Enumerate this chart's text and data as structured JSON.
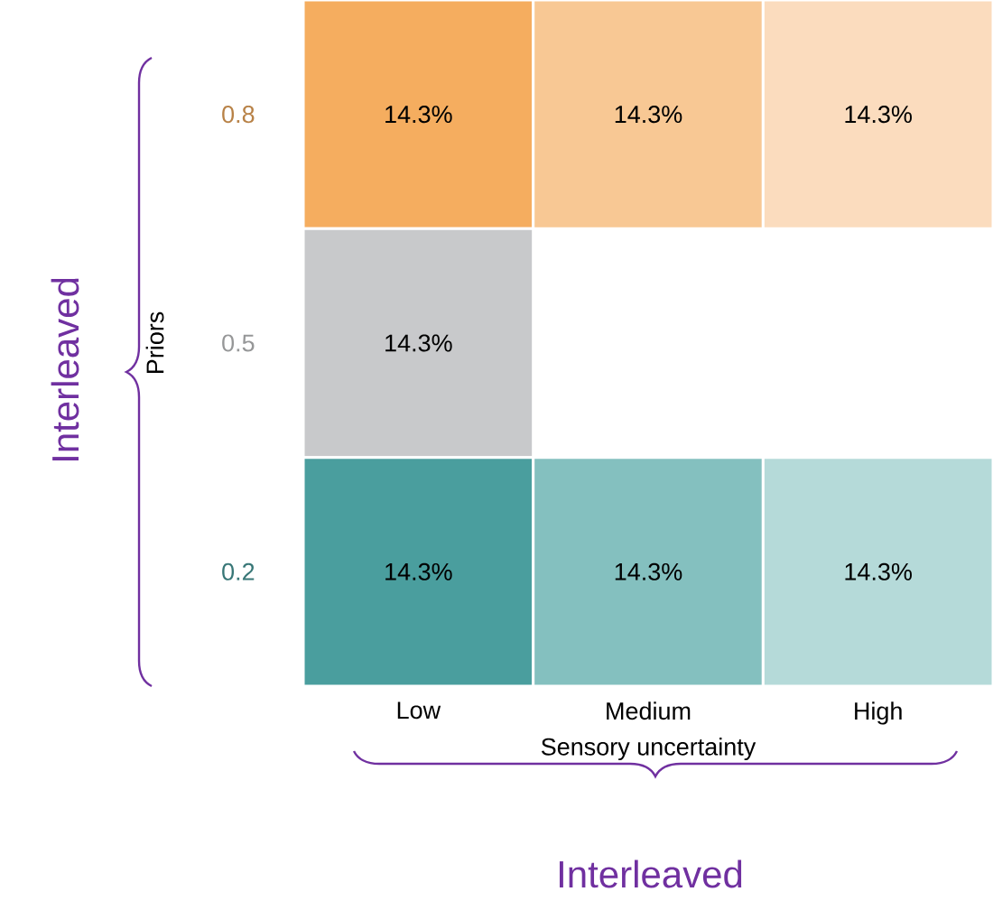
{
  "chart_data": {
    "type": "heatmap",
    "categories": [
      "Low",
      "Medium",
      "High"
    ],
    "y_categories": [
      "0.8",
      "0.5",
      "0.2"
    ],
    "cells": [
      [
        14.3,
        14.3,
        14.3
      ],
      [
        14.3,
        null,
        null
      ],
      [
        14.3,
        14.3,
        14.3
      ]
    ],
    "cell_labels": [
      [
        "14.3%",
        "14.3%",
        "14.3%"
      ],
      [
        "14.3%",
        null,
        null
      ],
      [
        "14.3%",
        "14.3%",
        "14.3%"
      ]
    ],
    "colors": [
      [
        "#f5ad5f",
        "#f8c894",
        "#fbdcbe"
      ],
      [
        "#c8c9cb",
        null,
        null
      ],
      [
        "#4a9e9e",
        "#84c0bf",
        "#b5dad9"
      ]
    ],
    "xlabel": "Sensory uncertainty",
    "ylabel": "Priors",
    "annotations": [
      "Interleaved",
      "Interleaved"
    ]
  }
}
